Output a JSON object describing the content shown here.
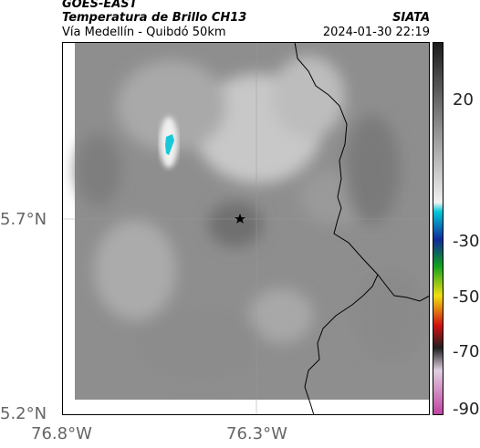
{
  "header": {
    "satellite": "GOES-EAST",
    "product": "Temperatura de Brillo CH13",
    "region": "Vía Medellín - Quibdó 50km",
    "agency": "SIATA",
    "timestamp": "2024-01-30 22:19"
  },
  "map": {
    "lat_labels": [
      "5.7°N",
      "5.2°N"
    ],
    "lon_labels": [
      "76.8°W",
      "76.3°W"
    ],
    "marker_icon": "star-icon",
    "colors": {
      "background": "#8e8e8e",
      "cold_cloud": "#19c8d8",
      "frame": "#000000",
      "grid": "#9a9a9a"
    }
  },
  "colorbar": {
    "tick_labels": [
      "20",
      "-30",
      "-50",
      "-70",
      "-90"
    ],
    "tick_values": [
      20,
      -30,
      -50,
      -70,
      -90
    ],
    "colors": {
      "top": "#1a1a1a",
      "cyan": "#00c8d8",
      "blue": "#102a9a",
      "green": "#10a020",
      "yellow": "#f0e010",
      "red": "#d01010",
      "magenta": "#c040a0"
    }
  }
}
